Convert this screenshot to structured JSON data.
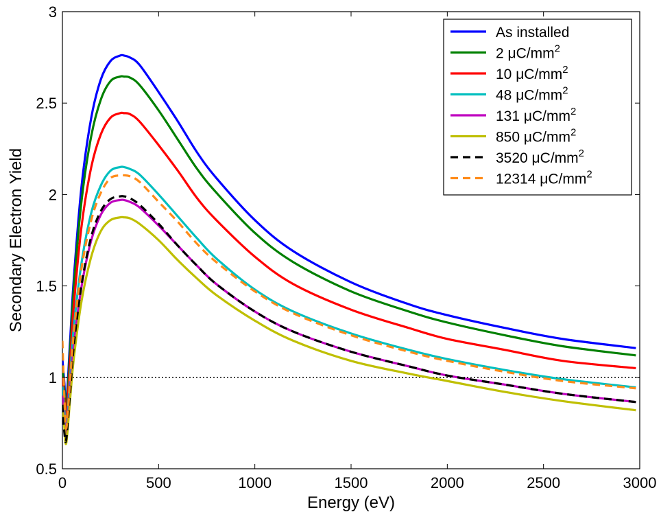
{
  "chart_data": {
    "type": "line",
    "xlabel": "Energy (eV)",
    "ylabel": "Secondary Electron Yield",
    "xlim": [
      0,
      3000
    ],
    "ylim": [
      0.5,
      3
    ],
    "xticks": [
      0,
      500,
      1000,
      1500,
      2000,
      2500,
      3000
    ],
    "yticks": [
      0.5,
      1,
      1.5,
      2,
      2.5,
      3
    ],
    "xtick_labels": [
      "0",
      "500",
      "1000",
      "1500",
      "2000",
      "2500",
      "3000"
    ],
    "ytick_labels": [
      "0.5",
      "1",
      "1.5",
      "2",
      "2.5",
      "3"
    ],
    "grid": false,
    "legend_position": "top-right",
    "reference_line": {
      "y": 1,
      "style": "dotted",
      "color": "#000000"
    },
    "series": [
      {
        "name": "As installed",
        "unit_text": "",
        "sup": "",
        "color": "#0000ff",
        "dashed": false,
        "x": [
          0,
          10,
          20,
          40,
          60,
          100,
          150,
          200,
          250,
          300,
          320,
          350,
          400,
          500,
          600,
          700,
          800,
          1000,
          1200,
          1500,
          1800,
          2000,
          2300,
          2600,
          2980
        ],
        "y": [
          1.1,
          0.97,
          0.85,
          1.2,
          1.55,
          2.05,
          2.42,
          2.63,
          2.73,
          2.76,
          2.76,
          2.75,
          2.71,
          2.56,
          2.4,
          2.23,
          2.09,
          1.86,
          1.69,
          1.52,
          1.4,
          1.34,
          1.27,
          1.21,
          1.16
        ]
      },
      {
        "name": "2",
        "unit_text": " μC/mm",
        "sup": "2",
        "color": "#008000",
        "dashed": false,
        "x": [
          0,
          10,
          20,
          40,
          60,
          100,
          150,
          200,
          250,
          300,
          320,
          350,
          400,
          500,
          600,
          700,
          800,
          1000,
          1200,
          1500,
          1800,
          2000,
          2300,
          2600,
          2980
        ],
        "y": [
          1.05,
          0.93,
          0.82,
          1.15,
          1.5,
          1.97,
          2.32,
          2.52,
          2.62,
          2.645,
          2.645,
          2.64,
          2.6,
          2.46,
          2.3,
          2.14,
          2.01,
          1.79,
          1.63,
          1.47,
          1.36,
          1.3,
          1.23,
          1.17,
          1.12
        ]
      },
      {
        "name": "10",
        "unit_text": " μC/mm",
        "sup": "2",
        "color": "#ff0000",
        "dashed": false,
        "x": [
          0,
          10,
          20,
          40,
          60,
          100,
          150,
          200,
          250,
          300,
          320,
          350,
          400,
          500,
          600,
          700,
          800,
          1000,
          1200,
          1500,
          1800,
          2000,
          2300,
          2600,
          2980
        ],
        "y": [
          1.0,
          0.88,
          0.78,
          1.08,
          1.4,
          1.83,
          2.15,
          2.33,
          2.42,
          2.445,
          2.445,
          2.44,
          2.4,
          2.27,
          2.13,
          1.98,
          1.86,
          1.66,
          1.51,
          1.37,
          1.27,
          1.21,
          1.15,
          1.09,
          1.05
        ]
      },
      {
        "name": "48",
        "unit_text": " μC/mm",
        "sup": "2",
        "color": "#00bfbf",
        "dashed": false,
        "x": [
          0,
          10,
          20,
          40,
          60,
          100,
          150,
          200,
          250,
          300,
          320,
          350,
          400,
          500,
          600,
          700,
          800,
          1000,
          1200,
          1500,
          1800,
          2000,
          2300,
          2600,
          2980
        ],
        "y": [
          0.95,
          0.82,
          0.72,
          1.0,
          1.28,
          1.63,
          1.9,
          2.05,
          2.13,
          2.15,
          2.15,
          2.14,
          2.11,
          2.0,
          1.88,
          1.76,
          1.65,
          1.48,
          1.36,
          1.24,
          1.15,
          1.1,
          1.04,
          0.99,
          0.945
        ]
      },
      {
        "name": "131",
        "unit_text": " μC/mm",
        "sup": "2",
        "color": "#bf00bf",
        "dashed": false,
        "x": [
          0,
          10,
          20,
          40,
          60,
          100,
          150,
          200,
          250,
          300,
          320,
          350,
          400,
          500,
          600,
          700,
          800,
          1000,
          1200,
          1500,
          1800,
          2000,
          2300,
          2600,
          2980
        ],
        "y": [
          0.9,
          0.76,
          0.67,
          0.93,
          1.18,
          1.5,
          1.75,
          1.89,
          1.955,
          1.97,
          1.97,
          1.96,
          1.93,
          1.83,
          1.72,
          1.61,
          1.51,
          1.36,
          1.25,
          1.14,
          1.06,
          1.01,
          0.96,
          0.91,
          0.865
        ]
      },
      {
        "name": "850",
        "unit_text": " μC/mm",
        "sup": "2",
        "color": "#bfbf00",
        "dashed": false,
        "x": [
          0,
          10,
          20,
          40,
          60,
          100,
          150,
          200,
          250,
          300,
          320,
          350,
          400,
          500,
          600,
          700,
          800,
          1000,
          1200,
          1500,
          1800,
          2000,
          2300,
          2600,
          2980
        ],
        "y": [
          0.85,
          0.73,
          0.64,
          0.88,
          1.11,
          1.42,
          1.66,
          1.8,
          1.86,
          1.875,
          1.875,
          1.87,
          1.84,
          1.75,
          1.64,
          1.54,
          1.45,
          1.31,
          1.2,
          1.09,
          1.02,
          0.98,
          0.92,
          0.87,
          0.82
        ]
      },
      {
        "name": "3520",
        "unit_text": " μC/mm",
        "sup": "2",
        "color": "#000000",
        "dashed": true,
        "x": [
          0,
          10,
          20,
          40,
          60,
          100,
          150,
          200,
          250,
          300,
          320,
          350,
          400,
          500,
          600,
          700,
          800,
          1000,
          1200,
          1500,
          1800,
          2000,
          2300,
          2600,
          2980
        ],
        "y": [
          0.85,
          0.7,
          0.66,
          0.92,
          1.18,
          1.51,
          1.77,
          1.91,
          1.975,
          1.99,
          1.99,
          1.98,
          1.945,
          1.84,
          1.72,
          1.61,
          1.51,
          1.36,
          1.25,
          1.14,
          1.06,
          1.01,
          0.96,
          0.91,
          0.865
        ]
      },
      {
        "name": "12314",
        "unit_text": " μC/mm",
        "sup": "2",
        "color": "#ff8c1a",
        "dashed": true,
        "x": [
          0,
          10,
          20,
          40,
          60,
          100,
          150,
          200,
          250,
          300,
          320,
          350,
          400,
          500,
          600,
          700,
          800,
          1000,
          1200,
          1500,
          1800,
          2000,
          2300,
          2600,
          2980
        ],
        "y": [
          1.2,
          0.9,
          0.72,
          0.98,
          1.25,
          1.6,
          1.86,
          2.01,
          2.09,
          2.105,
          2.105,
          2.1,
          2.07,
          1.96,
          1.85,
          1.73,
          1.63,
          1.47,
          1.35,
          1.23,
          1.14,
          1.09,
          1.03,
          0.98,
          0.94
        ]
      }
    ]
  }
}
